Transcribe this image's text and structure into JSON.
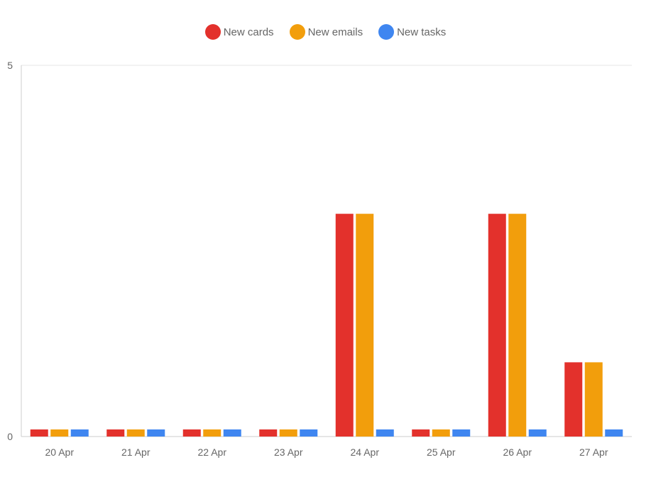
{
  "chart_data": {
    "type": "bar",
    "categories": [
      "20 Apr",
      "21 Apr",
      "22 Apr",
      "23 Apr",
      "24 Apr",
      "25 Apr",
      "26 Apr",
      "27 Apr"
    ],
    "series": [
      {
        "name": "New cards",
        "color": "#e3312c",
        "values": [
          0,
          0,
          0,
          0,
          3,
          0,
          3,
          1
        ]
      },
      {
        "name": "New emails",
        "color": "#f29e0c",
        "values": [
          0,
          0,
          0,
          0,
          3,
          0,
          3,
          1
        ]
      },
      {
        "name": "New tasks",
        "color": "#3f86f0",
        "values": [
          0,
          0,
          0,
          0,
          0,
          0,
          0,
          0
        ]
      }
    ],
    "y_ticks": [
      "0",
      "5"
    ],
    "ylim": [
      0,
      5
    ],
    "legend_position": "top-center",
    "grid": true
  }
}
